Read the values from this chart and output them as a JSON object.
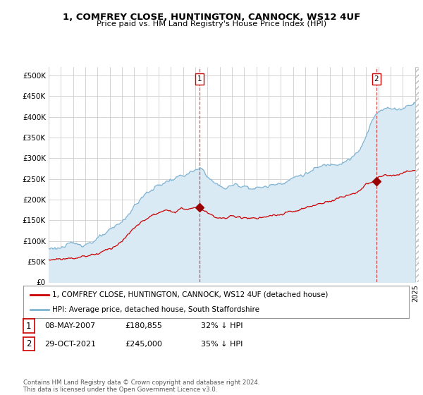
{
  "title": "1, COMFREY CLOSE, HUNTINGTON, CANNOCK, WS12 4UF",
  "subtitle": "Price paid vs. HM Land Registry's House Price Index (HPI)",
  "ytick_values": [
    0,
    50000,
    100000,
    150000,
    200000,
    250000,
    300000,
    350000,
    400000,
    450000,
    500000
  ],
  "ylim": [
    0,
    520000
  ],
  "xlim_start": 1995.3,
  "xlim_end": 2025.3,
  "hpi_color": "#7fb3d3",
  "hpi_fill_color": "#d9eaf5",
  "price_color": "#cc0000",
  "marker_color": "#990000",
  "transaction1_x": 2007.37,
  "transaction1_y": 180855,
  "transaction2_x": 2021.83,
  "transaction2_y": 245000,
  "legend_line1": "1, COMFREY CLOSE, HUNTINGTON, CANNOCK, WS12 4UF (detached house)",
  "legend_line2": "HPI: Average price, detached house, South Staffordshire",
  "footer": "Contains HM Land Registry data © Crown copyright and database right 2024.\nThis data is licensed under the Open Government Licence v3.0.",
  "background_color": "#ffffff",
  "grid_color": "#cccccc"
}
